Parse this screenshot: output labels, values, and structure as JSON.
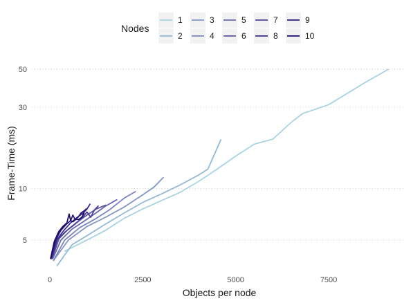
{
  "chart_data": {
    "type": "line",
    "xlabel": "Objects per node",
    "ylabel": "Frame-Time (ms)",
    "legend_title": "Nodes",
    "legend_position": "top",
    "y_scale": "log",
    "grid": "horizontal dotted",
    "xlim": [
      -500,
      9500
    ],
    "ylim": [
      3.45,
      58
    ],
    "x_ticks": [
      0,
      2500,
      5000,
      7500
    ],
    "x_tick_labels": [
      "0",
      "2500",
      "5000",
      "7500"
    ],
    "y_ticks": [
      5,
      10,
      30,
      50
    ],
    "y_tick_labels": [
      "5",
      "10",
      "30",
      "50"
    ],
    "series": [
      {
        "name": "1",
        "color": "#a6d4e0",
        "x": [
          400,
          1000,
          1500,
          2000,
          2500,
          3000,
          3500,
          4000,
          4500,
          5000,
          5500,
          6000,
          6500,
          6800,
          7500,
          8500,
          9100
        ],
        "y": [
          4.3,
          5.0,
          5.7,
          6.7,
          7.6,
          8.5,
          9.5,
          11.0,
          13.0,
          15.5,
          18.2,
          19.5,
          24.5,
          27.5,
          31.0,
          42.0,
          49.8
        ]
      },
      {
        "name": "2",
        "color": "#92b9d6",
        "x": [
          200,
          600,
          1000,
          1500,
          2000,
          2500,
          3000,
          3500,
          4000,
          4250,
          4600
        ],
        "y": [
          3.55,
          4.7,
          5.3,
          6.2,
          7.2,
          8.3,
          9.3,
          10.5,
          12.0,
          13.0,
          19.3
        ]
      },
      {
        "name": "3",
        "color": "#8095c6",
        "x": [
          100,
          500,
          1000,
          1500,
          2000,
          2500,
          2800,
          3050
        ],
        "y": [
          3.8,
          5.0,
          6.0,
          6.8,
          7.8,
          9.2,
          10.2,
          11.6
        ]
      },
      {
        "name": "4",
        "color": "#7a83c0",
        "x": [
          100,
          400,
          800,
          1200,
          1600,
          2000,
          2300
        ],
        "y": [
          3.8,
          5.0,
          5.9,
          6.6,
          7.5,
          8.8,
          9.6
        ]
      },
      {
        "name": "5",
        "color": "#6868b0",
        "x": [
          80,
          300,
          600,
          900,
          1200,
          1500,
          1800
        ],
        "y": [
          3.9,
          5.0,
          5.8,
          6.4,
          7.1,
          7.9,
          8.6
        ]
      },
      {
        "name": "6",
        "color": "#5a559f",
        "x": [
          60,
          250,
          500,
          750,
          1000,
          1250,
          1500
        ],
        "y": [
          3.9,
          5.1,
          5.8,
          6.4,
          7.0,
          7.6,
          8.0
        ]
      },
      {
        "name": "7",
        "color": "#4a3f98",
        "x": [
          50,
          200,
          420,
          640,
          860,
          1000,
          1100,
          1200,
          1300
        ],
        "y": [
          3.9,
          5.0,
          5.6,
          6.1,
          6.7,
          7.3,
          6.8,
          7.5,
          7.9
        ]
      },
      {
        "name": "8",
        "color": "#3a2a8d",
        "x": [
          40,
          180,
          380,
          560,
          740,
          900,
          1000,
          1080
        ],
        "y": [
          3.9,
          5.0,
          5.7,
          6.3,
          6.8,
          7.2,
          7.6,
          8.1
        ]
      },
      {
        "name": "9",
        "color": "#2a187c",
        "x": [
          30,
          150,
          300,
          450,
          560,
          620,
          680,
          760,
          840,
          920,
          980
        ],
        "y": [
          3.95,
          5.0,
          5.7,
          6.2,
          6.5,
          7.0,
          6.6,
          6.8,
          7.2,
          7.4,
          7.6
        ]
      },
      {
        "name": "10",
        "color": "#1a0a6b",
        "x": [
          20,
          120,
          240,
          350,
          460,
          520,
          560,
          620,
          700,
          780,
          860,
          920
        ],
        "y": [
          3.9,
          4.9,
          5.6,
          6.0,
          6.3,
          7.1,
          6.5,
          6.4,
          6.6,
          6.6,
          6.8,
          7.2
        ]
      }
    ]
  }
}
